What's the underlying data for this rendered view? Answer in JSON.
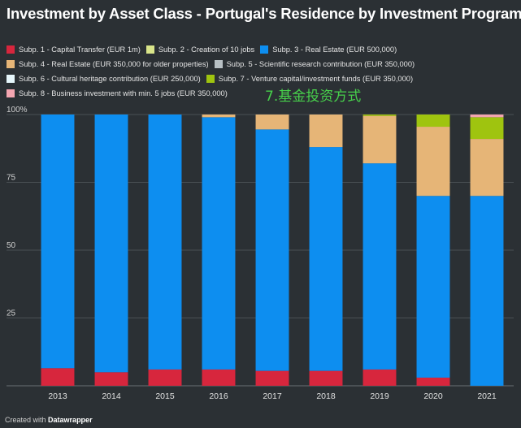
{
  "chart_data": {
    "type": "bar",
    "stacked": true,
    "title": "Investment by Asset Class - Portugal's Residence by Investment Program",
    "categories": [
      "2013",
      "2014",
      "2015",
      "2016",
      "2017",
      "2018",
      "2019",
      "2020",
      "2021"
    ],
    "ylim": [
      0,
      100
    ],
    "yticks": [
      "100%",
      "75",
      "50",
      "25"
    ],
    "grid": true,
    "legend_position": "top",
    "series": [
      {
        "name": "Subp. 1 - Capital Transfer (EUR 1m)",
        "color": "#d7263d",
        "values": [
          6.5,
          5,
          6,
          6,
          5.5,
          5.5,
          6,
          3,
          0
        ]
      },
      {
        "name": "Subp. 2 - Creation of 10 jobs",
        "color": "#d9e58a",
        "values": [
          0,
          0,
          0,
          0,
          0,
          0,
          0,
          0,
          0
        ]
      },
      {
        "name": "Subp. 3 - Real Estate (EUR 500,000)",
        "color": "#0d8ef0",
        "values": [
          93.5,
          95,
          94,
          93,
          89,
          82.5,
          76,
          67,
          70
        ]
      },
      {
        "name": "Subp. 4 - Real Estate (EUR 350,000 for older properties)",
        "color": "#e6b577",
        "values": [
          0,
          0,
          0,
          1,
          5.5,
          12,
          17.5,
          25.5,
          21
        ]
      },
      {
        "name": "Subp. 5 - Scientific research contribution (EUR 350,000)",
        "color": "#b8c0c4",
        "values": [
          0,
          0,
          0,
          0,
          0,
          0,
          0,
          0,
          0
        ]
      },
      {
        "name": "Subp. 6 - Cultural heritage contribution (EUR 250,000)",
        "color": "#e6f6fb",
        "values": [
          0,
          0,
          0,
          0,
          0,
          0,
          0,
          0,
          0
        ]
      },
      {
        "name": "Subp. 7 - Venture capital/investment funds (EUR 350,000)",
        "color": "#9fc40f",
        "values": [
          0,
          0,
          0,
          0,
          0,
          0,
          0.5,
          4.5,
          8
        ]
      },
      {
        "name": "Subp. 8 - Business investment with min. 5 jobs (EUR 350,000)",
        "color": "#f3a5b0",
        "values": [
          0,
          0,
          0,
          0,
          0,
          0,
          0,
          0,
          1
        ]
      }
    ]
  },
  "legend_rows": [
    [
      0,
      1,
      2
    ],
    [
      3,
      4
    ],
    [
      5,
      6
    ],
    [
      7
    ]
  ],
  "annotation": "7.基金投资方式",
  "footer": {
    "prefix": "Created with",
    "brand": "Datawrapper"
  }
}
